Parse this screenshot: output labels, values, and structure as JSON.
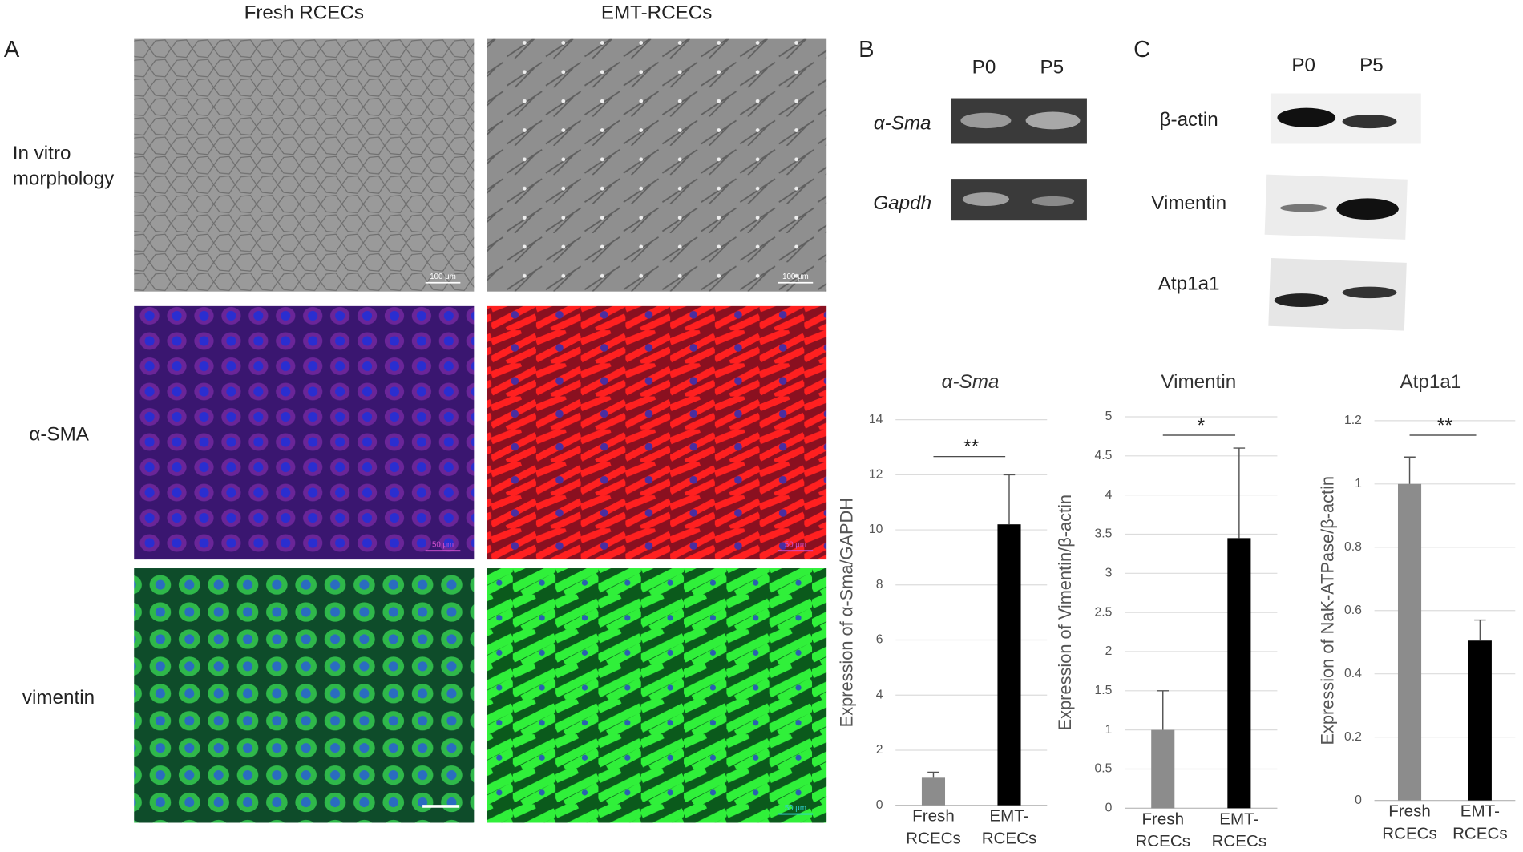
{
  "panel_a": {
    "label": "A",
    "columns": [
      "Fresh RCECs",
      "EMT-RCECs"
    ],
    "rows": [
      {
        "label": [
          "In vitro",
          "morphology"
        ],
        "scale_labels": [
          "100 μm",
          "100 μm"
        ]
      },
      {
        "label": [
          "α-SMA"
        ],
        "scale_labels": [
          "50 μm",
          "50 μm"
        ]
      },
      {
        "label": [
          "vimentin"
        ],
        "scale_labels": [
          null,
          "50 μm"
        ]
      }
    ]
  },
  "panel_b": {
    "label": "B",
    "lanes": [
      "P0",
      "P5"
    ],
    "genes": [
      "α-Sma",
      "Gapdh"
    ]
  },
  "panel_c": {
    "label": "C",
    "lanes": [
      "P0",
      "P5"
    ],
    "proteins": [
      "β-actin",
      "Vimentin",
      "Atp1a1"
    ]
  },
  "chart_data": [
    {
      "type": "bar",
      "title": "α-Sma",
      "title_style": "italic",
      "y_label": "Expression  of α-Sma/GAPDH",
      "categories": [
        [
          "Fresh",
          "RCECs"
        ],
        [
          "EMT-",
          "RCECs"
        ]
      ],
      "values": [
        1,
        10.2
      ],
      "errors": [
        0.2,
        1.8
      ],
      "colors": [
        "#8c8c8c",
        "#000000"
      ],
      "ylim": [
        0,
        14
      ],
      "yticks": [
        0,
        2,
        4,
        6,
        8,
        10,
        12,
        14
      ],
      "grid": true,
      "significance": "**"
    },
    {
      "type": "bar",
      "title": "Vimentin",
      "title_style": "normal",
      "y_label": "Expression of Vimentin/β-actin",
      "categories": [
        [
          "Fresh",
          "RCECs"
        ],
        [
          "EMT-",
          "RCECs"
        ]
      ],
      "values": [
        1,
        3.45
      ],
      "errors": [
        0.5,
        1.15
      ],
      "colors": [
        "#8c8c8c",
        "#000000"
      ],
      "ylim": [
        0,
        5
      ],
      "yticks": [
        0,
        0.5,
        1,
        1.5,
        2,
        2.5,
        3,
        3.5,
        4,
        4.5,
        5
      ],
      "grid": true,
      "significance": "*"
    },
    {
      "type": "bar",
      "title": "Atp1a1",
      "title_style": "normal",
      "y_label": "Expression of NaK-ATPase/β-actin",
      "categories": [
        [
          "Fresh",
          "RCECs"
        ],
        [
          "EMT-",
          "RCECs"
        ]
      ],
      "values": [
        1,
        0.505
      ],
      "errors": [
        0.085,
        0.065
      ],
      "colors": [
        "#8c8c8c",
        "#000000"
      ],
      "ylim": [
        0,
        1.2
      ],
      "yticks": [
        0,
        0.2,
        0.4,
        0.6,
        0.8,
        1,
        1.2
      ],
      "grid": true,
      "significance": "**"
    }
  ]
}
